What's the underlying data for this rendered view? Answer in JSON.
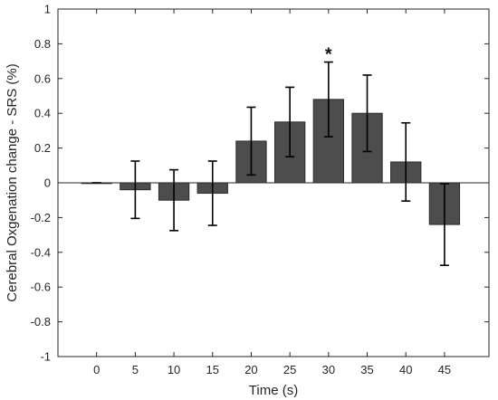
{
  "chart_data": {
    "type": "bar",
    "title": "",
    "xlabel": "Time (s)",
    "ylabel": "Cerebral Oxgenation change - SRS (%)",
    "categories": [
      "0",
      "5",
      "10",
      "15",
      "20",
      "25",
      "30",
      "35",
      "40",
      "45"
    ],
    "values": [
      0.0,
      -0.04,
      -0.1,
      -0.06,
      0.24,
      0.35,
      0.48,
      0.4,
      0.12,
      -0.24
    ],
    "error": [
      0.0,
      0.165,
      0.175,
      0.185,
      0.195,
      0.2,
      0.215,
      0.22,
      0.225,
      0.235
    ],
    "ylim": [
      -1,
      1
    ],
    "yticks": [
      "1",
      "0.8",
      "0.6",
      "0.4",
      "0.2",
      "0",
      "-0.2",
      "-0.4",
      "-0.6",
      "-0.8",
      "-1"
    ],
    "ytick_values": [
      1,
      0.8,
      0.6,
      0.4,
      0.2,
      0,
      -0.2,
      -0.4,
      -0.6,
      -0.8,
      -1
    ],
    "annotations": [
      {
        "category": "30",
        "text": "*"
      }
    ],
    "grid": false,
    "colors": {
      "bar": "#4d4d4d",
      "bar_edge": "#2b2b2b",
      "axis": "#262626",
      "error": "#000000"
    }
  }
}
